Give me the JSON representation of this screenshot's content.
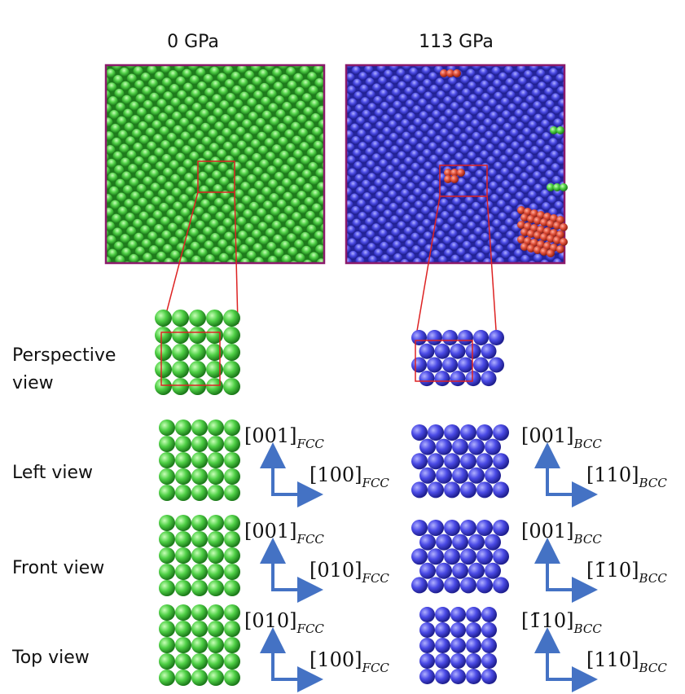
{
  "columns": [
    {
      "title": "0 GPa"
    },
    {
      "title": "113 GPa"
    }
  ],
  "perspective": {
    "label_lines": [
      "Perspective",
      "view"
    ]
  },
  "views": [
    {
      "label": "Left view",
      "axes": [
        {
          "vertical": {
            "index": "[001]",
            "phase": "FCC"
          },
          "horizontal": {
            "index": "[100]",
            "phase": "FCC"
          }
        },
        {
          "vertical": {
            "index": "[001]",
            "phase": "BCC"
          },
          "horizontal": {
            "index": "[110]",
            "phase": "BCC"
          }
        }
      ]
    },
    {
      "label": "Front view",
      "axes": [
        {
          "vertical": {
            "index": "[001]",
            "phase": "FCC"
          },
          "horizontal": {
            "index": "[010]",
            "phase": "FCC"
          }
        },
        {
          "vertical": {
            "index": "[001]",
            "phase": "BCC"
          },
          "horizontal": {
            "index": "[1̄10]",
            "phase": "BCC"
          }
        }
      ]
    },
    {
      "label": "Top view",
      "axes": [
        {
          "vertical": {
            "index": "[010]",
            "phase": "FCC"
          },
          "horizontal": {
            "index": "[100]",
            "phase": "FCC"
          }
        },
        {
          "vertical": {
            "index": "[1̄10]",
            "phase": "BCC"
          },
          "horizontal": {
            "index": "[110]",
            "phase": "BCC"
          }
        }
      ]
    }
  ]
}
